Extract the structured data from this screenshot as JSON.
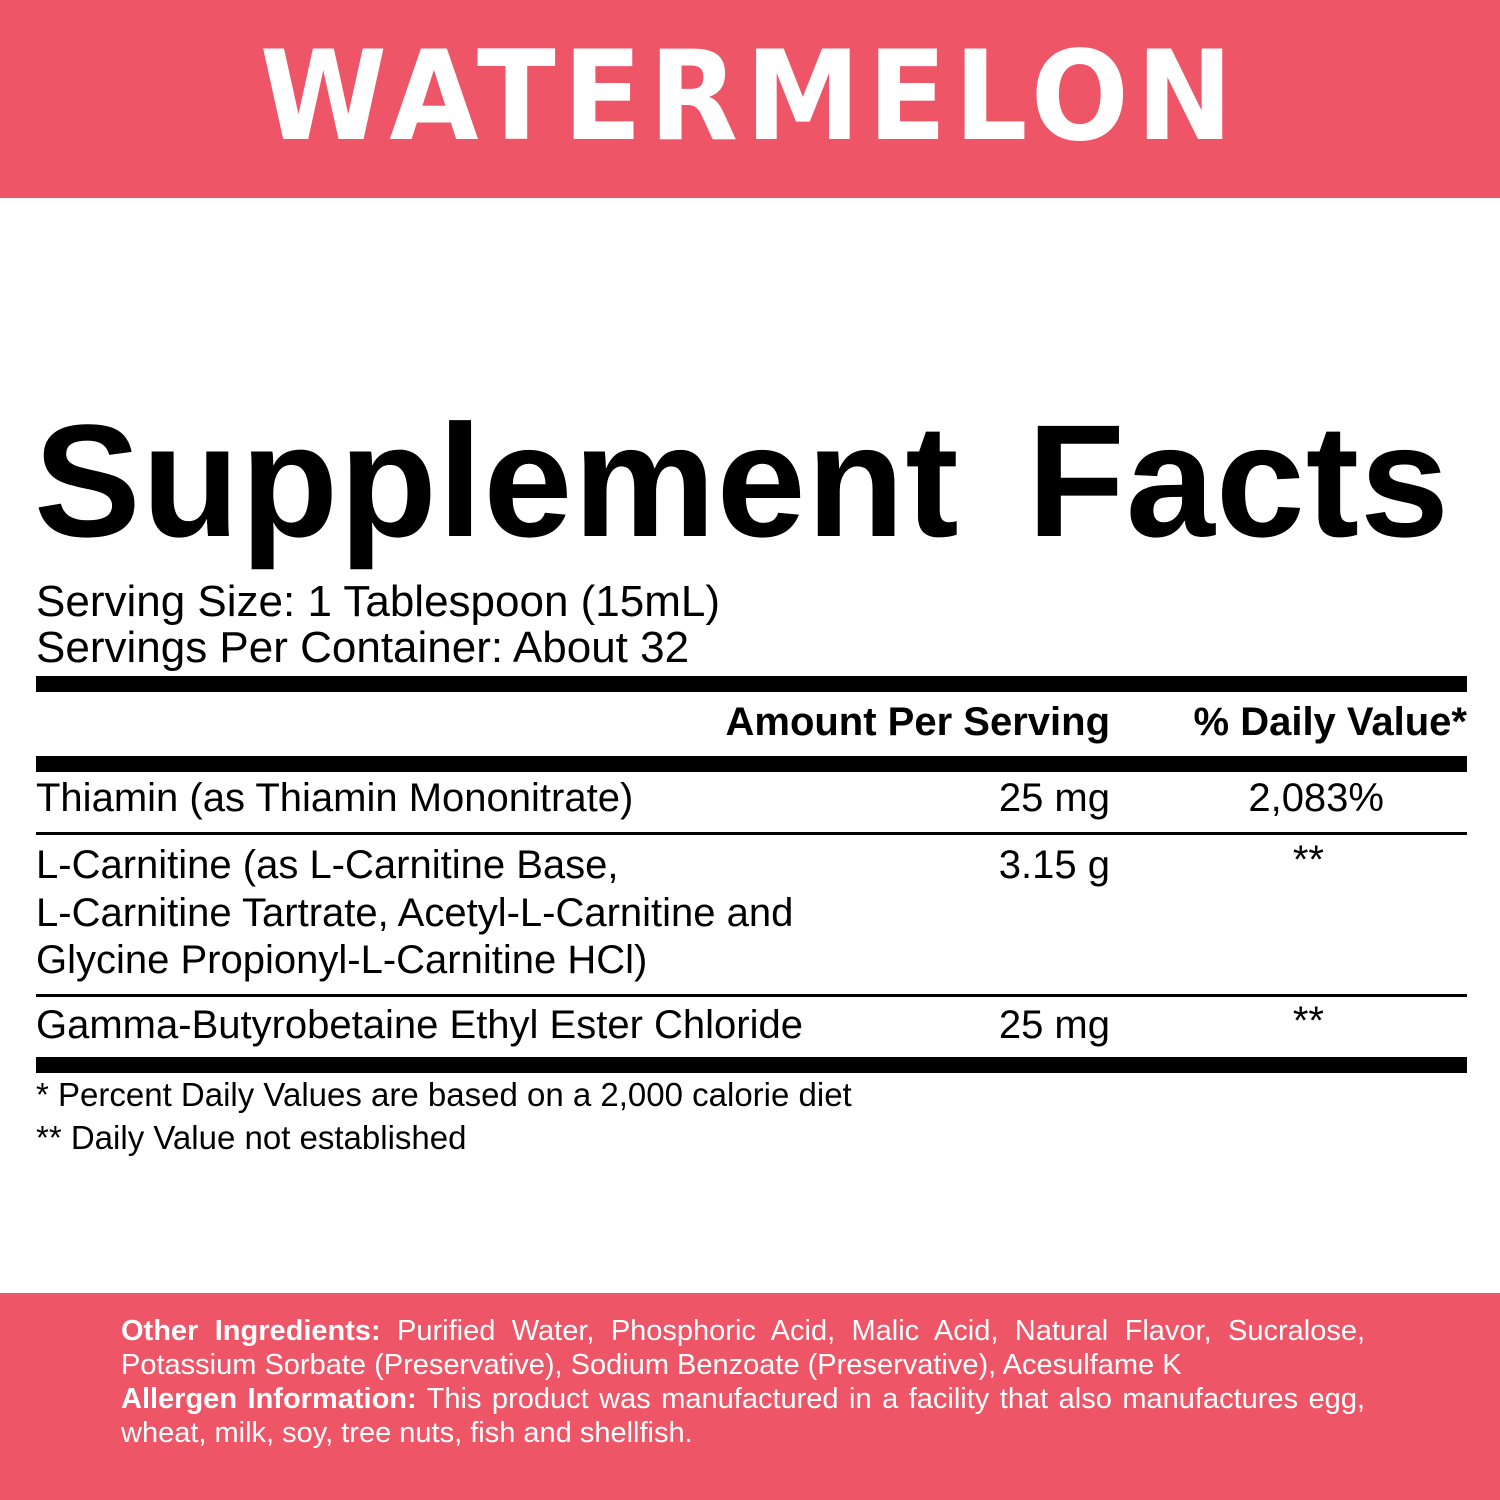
{
  "header": {
    "flavor": "WATERMELON",
    "band_color": "#ee5567"
  },
  "title": "Supplement Facts",
  "serving_size": "Serving Size: 1 Tablespoon (15mL)",
  "servings_per_container": "Servings Per Container: About 32",
  "columns": {
    "amount": "Amount Per Serving",
    "dv": "% Daily Value*"
  },
  "rows": [
    {
      "name_lines": [
        "Thiamin (as Thiamin Mononitrate)"
      ],
      "amount": "25 mg",
      "dv": "2,083%"
    },
    {
      "name_lines": [
        "L-Carnitine (as L-Carnitine Base,",
        "L-Carnitine Tartrate, Acetyl-L-Carnitine and",
        "Glycine Propionyl-L-Carnitine HCl)"
      ],
      "amount": "3.15 g",
      "dv": "**"
    },
    {
      "name_lines": [
        "Gamma-Butyrobetaine Ethyl Ester Chloride"
      ],
      "amount": "25 mg",
      "dv": "**"
    }
  ],
  "footnotes": [
    "* Percent Daily Values are based on a 2,000 calorie diet",
    "** Daily Value not established"
  ],
  "other_ingredients": {
    "label": "Other Ingredients:",
    "text": "Purified Water, Phosphoric Acid, Malic Acid, Natural Flavor, Sucralose, Potassium Sorbate (Preservative), Sodium Benzoate (Preservative), Acesulfame K"
  },
  "allergen": {
    "label": "Allergen Information:",
    "text": "This product was manufactured in a facility that also manufactures egg, wheat, milk, soy, tree nuts, fish and shellfish."
  }
}
